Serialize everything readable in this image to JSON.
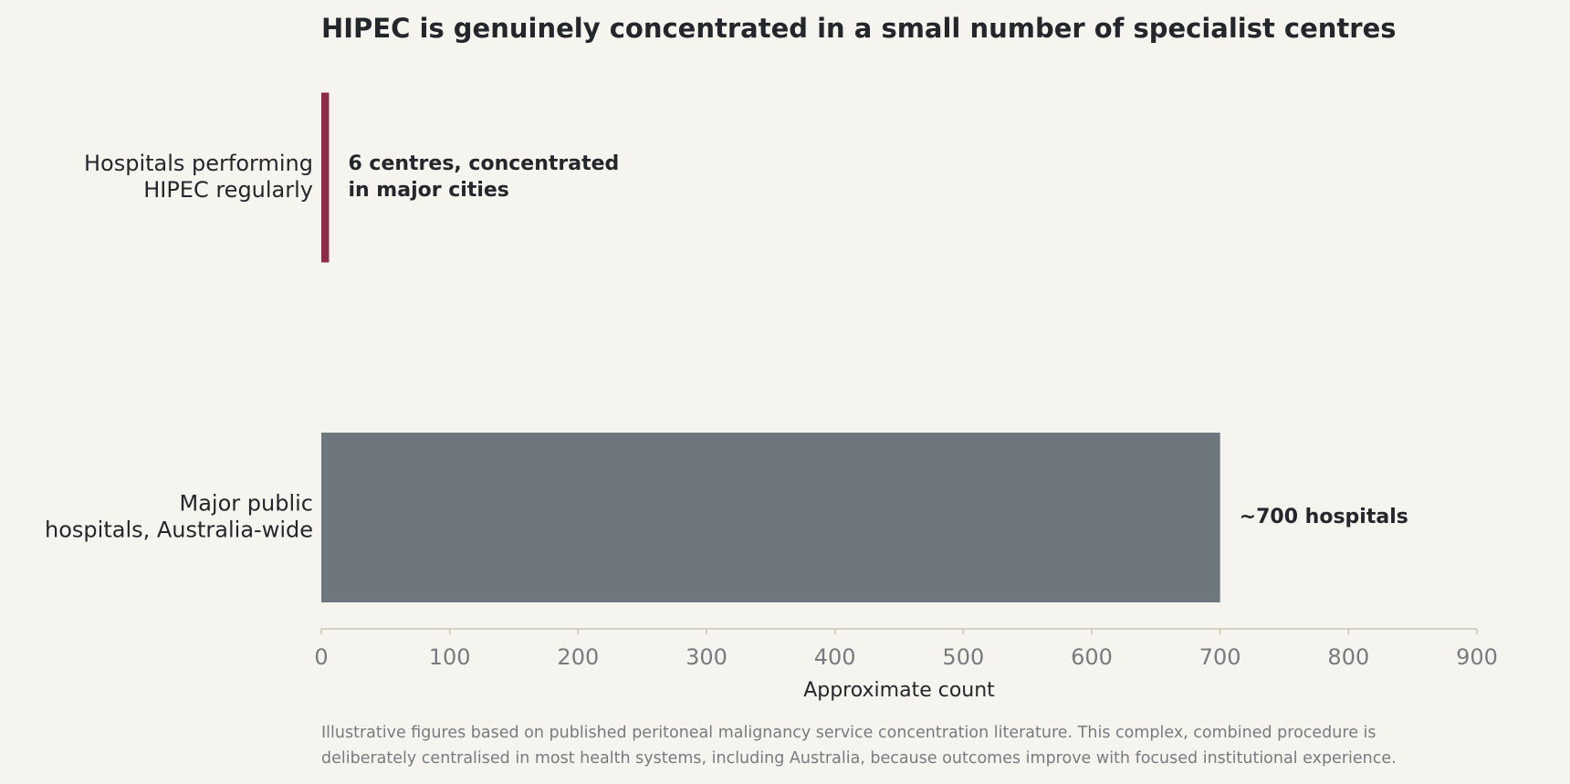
{
  "chart_data": {
    "type": "bar",
    "orientation": "horizontal",
    "title": "HIPEC is genuinely concentrated in a small number of specialist centres",
    "categories": [
      "Hospitals performing\nHIPEC regularly",
      "Major public\nhospitals, Australia-wide"
    ],
    "values": [
      6,
      700
    ],
    "value_labels": [
      "6 centres, concentrated\nin major cities",
      "~700 hospitals"
    ],
    "colors": [
      "#8b2e45",
      "#6f777e"
    ],
    "xlabel": "Approximate count",
    "xlim": [
      0,
      900
    ],
    "xticks": [
      0,
      100,
      200,
      300,
      400,
      500,
      600,
      700,
      800,
      900
    ],
    "note": "Illustrative figures based on published peritoneal malignancy service concentration literature. This complex, combined procedure is\ndeliberately centralised in most health systems, including Australia, because outcomes improve with focused institutional experience."
  }
}
